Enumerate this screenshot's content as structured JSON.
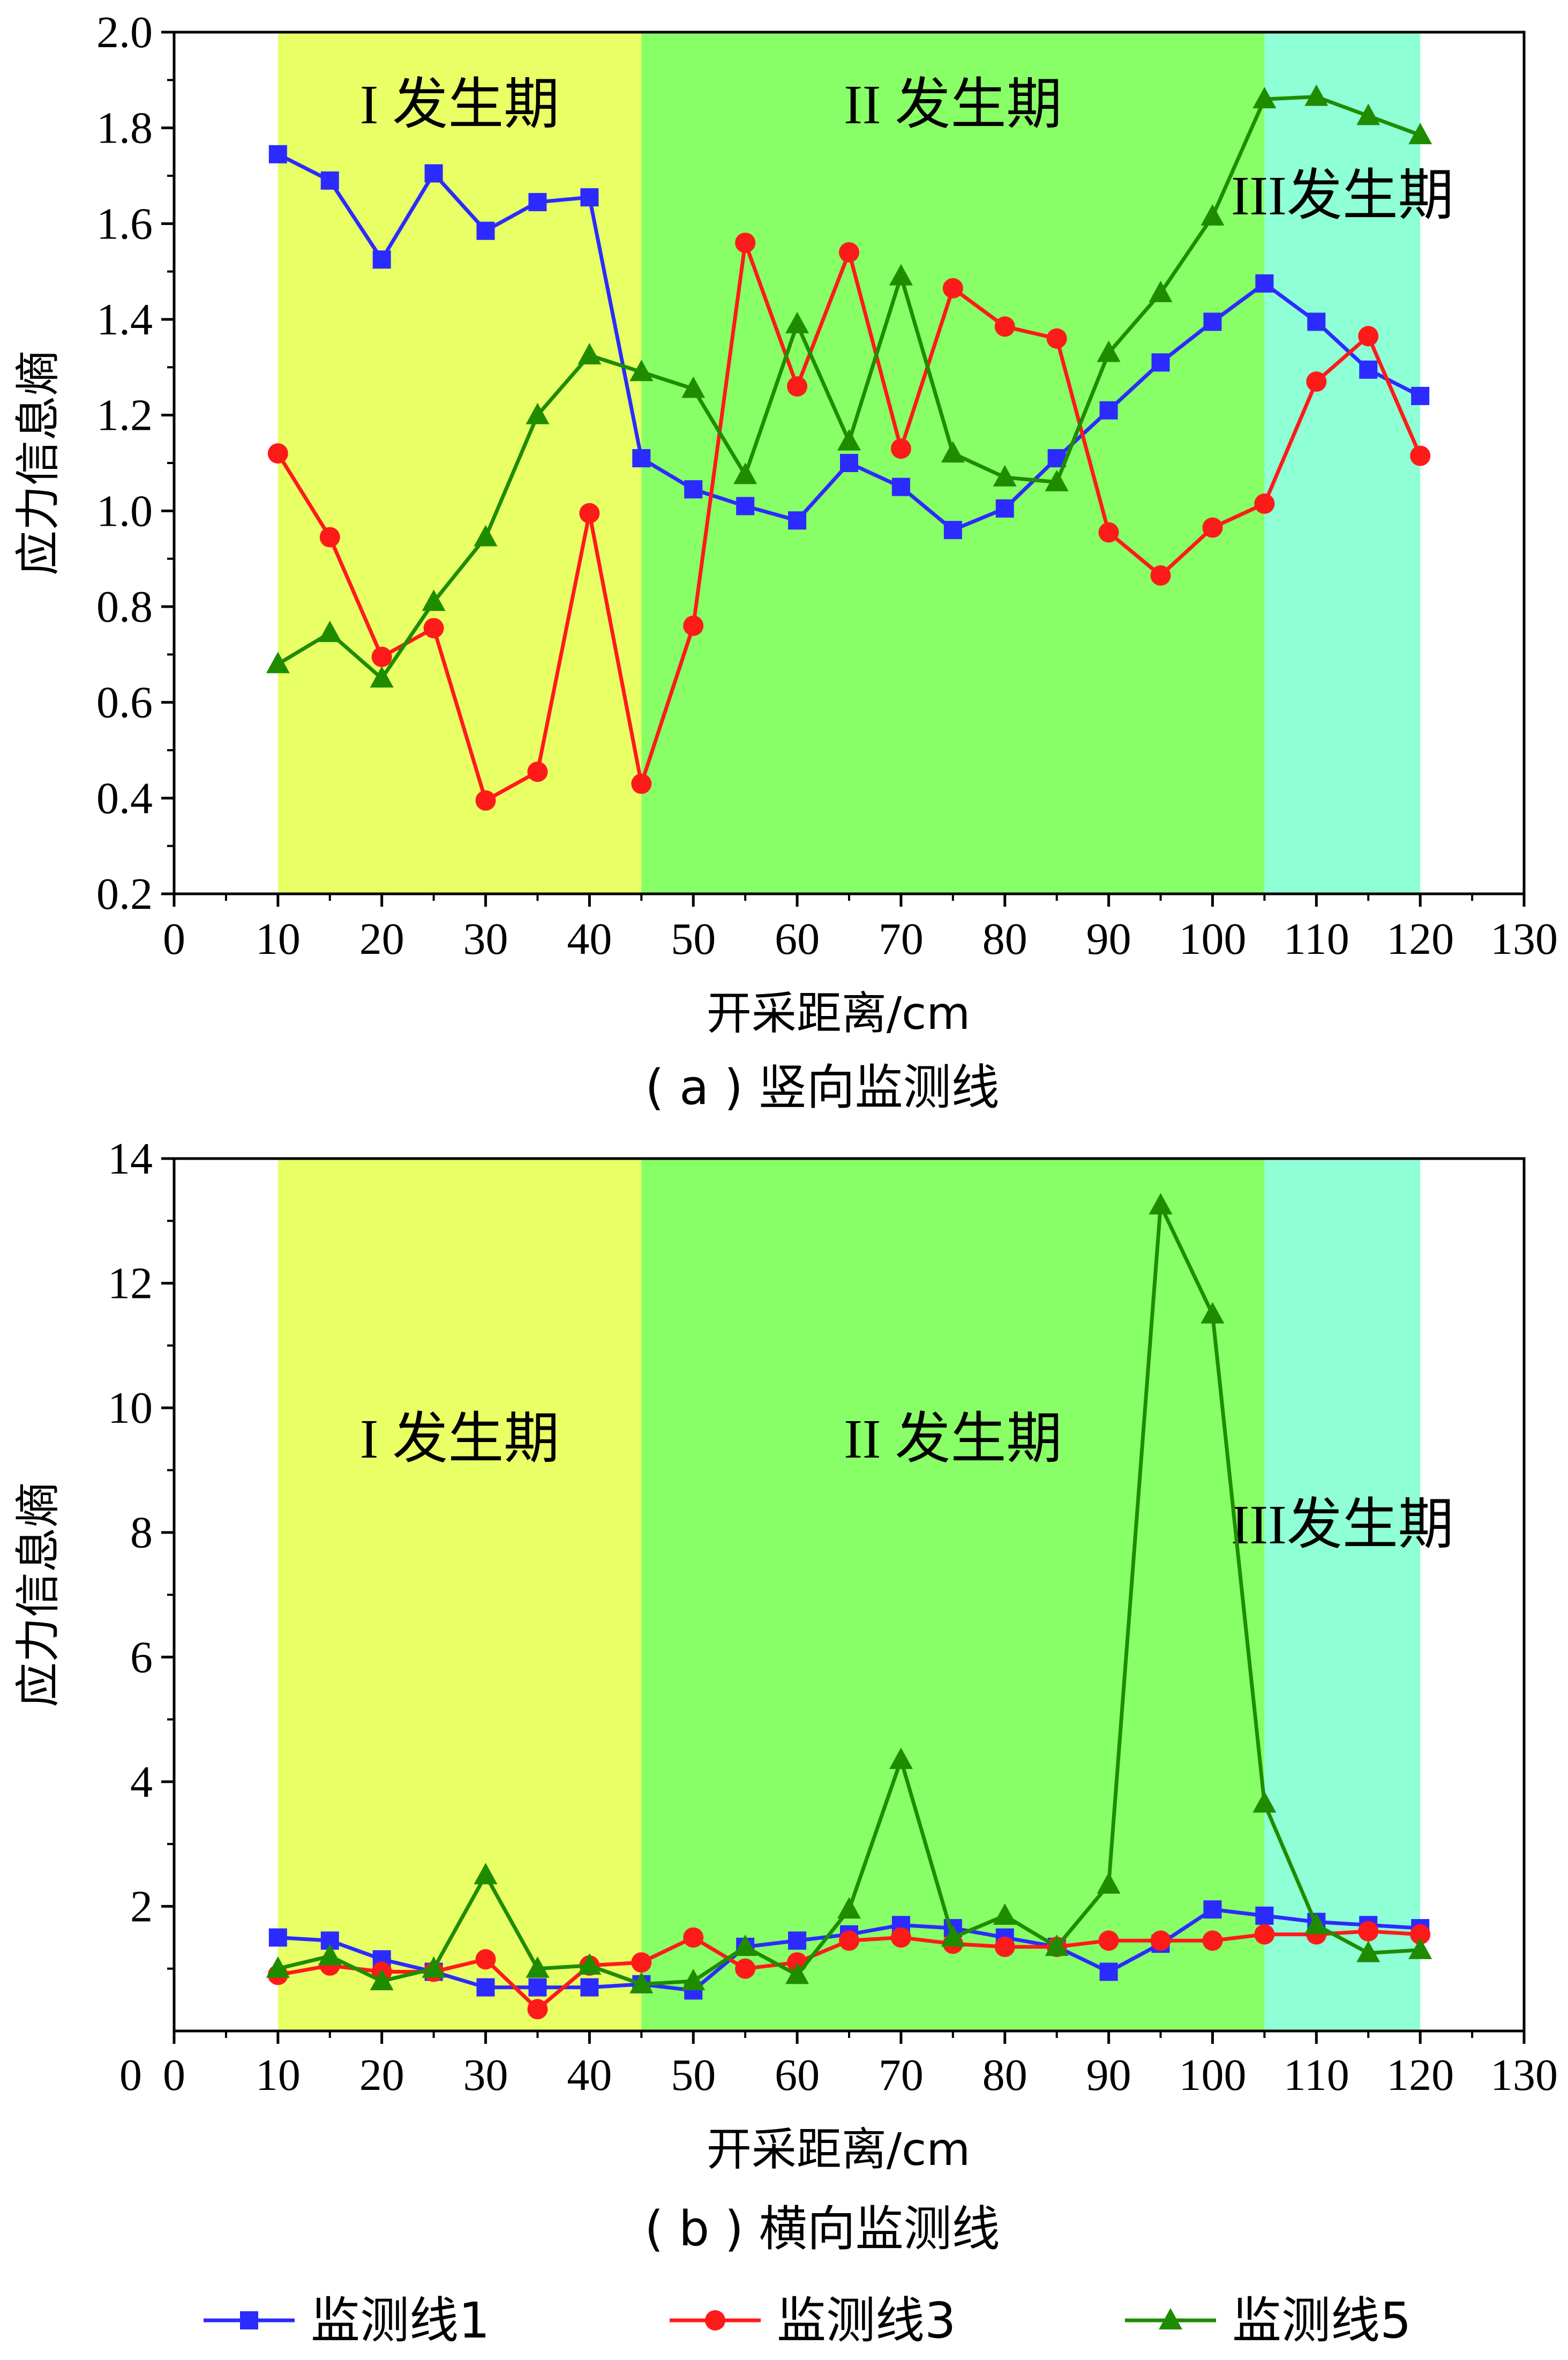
{
  "legend": {
    "items": [
      {
        "label": "监测线1",
        "color": "#2b2bff",
        "marker": "square"
      },
      {
        "label": "监测线3",
        "color": "#ff1a1a",
        "marker": "circle"
      },
      {
        "label": "监测线5",
        "color": "#1f8c00",
        "marker": "triangle"
      }
    ]
  },
  "chart_data": [
    {
      "type": "line",
      "caption": "( a ) 竖向监测线",
      "xlabel": "开采距离/cm",
      "ylabel": "应力信息熵",
      "xlim": [
        0,
        130
      ],
      "ylim": [
        0.2,
        2.0
      ],
      "xticks": [
        "0",
        "10",
        "20",
        "30",
        "40",
        "50",
        "60",
        "70",
        "80",
        "90",
        "100",
        "110",
        "120",
        "130"
      ],
      "yticks": [
        "0.2",
        "0.4",
        "0.6",
        "0.8",
        "1.0",
        "1.2",
        "1.4",
        "1.6",
        "1.8",
        "2.0"
      ],
      "zones": [
        {
          "label": "I 发生期",
          "x0": 10,
          "x1": 45,
          "color": "#e8ff66"
        },
        {
          "label": "II 发生期",
          "x0": 45,
          "x1": 105,
          "color": "#88ff66"
        },
        {
          "label": "III发生期",
          "x0": 105,
          "x1": 120,
          "color": "#8fffd6"
        }
      ],
      "x": [
        10,
        15,
        20,
        25,
        30,
        35,
        40,
        45,
        50,
        55,
        60,
        65,
        70,
        75,
        80,
        85,
        90,
        95,
        100,
        105,
        110,
        115,
        120
      ],
      "series": [
        {
          "name": "监测线1",
          "color": "#2b2bff",
          "marker": "square",
          "values": [
            1.745,
            1.69,
            1.525,
            1.705,
            1.585,
            1.645,
            1.655,
            1.11,
            1.045,
            1.01,
            0.98,
            1.1,
            1.05,
            0.96,
            1.005,
            1.11,
            1.21,
            1.31,
            1.395,
            1.475,
            1.395,
            1.295,
            1.24
          ]
        },
        {
          "name": "监测线3",
          "color": "#ff1a1a",
          "marker": "circle",
          "values": [
            1.12,
            0.945,
            0.695,
            0.755,
            0.395,
            0.455,
            0.995,
            0.43,
            0.76,
            1.56,
            1.26,
            1.54,
            1.13,
            1.465,
            1.385,
            1.36,
            0.955,
            0.865,
            0.965,
            1.015,
            1.27,
            1.365,
            1.115
          ]
        },
        {
          "name": "监测线5",
          "color": "#1f8c00",
          "marker": "triangle",
          "values": [
            0.68,
            0.745,
            0.65,
            0.81,
            0.945,
            1.2,
            1.325,
            1.29,
            1.255,
            1.075,
            1.39,
            1.145,
            1.49,
            1.12,
            1.07,
            1.06,
            1.33,
            1.455,
            1.615,
            1.86,
            1.865,
            1.825,
            1.785
          ]
        }
      ]
    },
    {
      "type": "line",
      "caption": "( b ) 横向监测线",
      "xlabel": "开采距离/cm",
      "ylabel": "应力信息熵",
      "xlim": [
        0,
        130
      ],
      "ylim": [
        0,
        14
      ],
      "xticks": [
        "0",
        "10",
        "20",
        "30",
        "40",
        "50",
        "60",
        "70",
        "80",
        "90",
        "100",
        "110",
        "120",
        "130"
      ],
      "yticks": [
        "2",
        "4",
        "6",
        "8",
        "10",
        "12",
        "14"
      ],
      "zones": [
        {
          "label": "I 发生期",
          "x0": 10,
          "x1": 45,
          "color": "#e8ff66"
        },
        {
          "label": "II 发生期",
          "x0": 45,
          "x1": 105,
          "color": "#88ff66"
        },
        {
          "label": "III发生期",
          "x0": 105,
          "x1": 120,
          "color": "#8fffd6"
        }
      ],
      "x": [
        10,
        15,
        20,
        25,
        30,
        35,
        40,
        45,
        50,
        55,
        60,
        65,
        70,
        75,
        80,
        85,
        90,
        95,
        100,
        105,
        110,
        115,
        120
      ],
      "series": [
        {
          "name": "监测线1",
          "color": "#2b2bff",
          "marker": "square",
          "values": [
            1.5,
            1.45,
            1.15,
            0.95,
            0.7,
            0.7,
            0.7,
            0.75,
            0.65,
            1.35,
            1.45,
            1.55,
            1.7,
            1.65,
            1.5,
            1.35,
            0.95,
            1.4,
            1.95,
            1.85,
            1.75,
            1.7,
            1.65
          ]
        },
        {
          "name": "监测线3",
          "color": "#ff1a1a",
          "marker": "circle",
          "values": [
            0.9,
            1.05,
            0.95,
            0.95,
            1.15,
            0.35,
            1.05,
            1.1,
            1.5,
            1.0,
            1.1,
            1.45,
            1.5,
            1.4,
            1.35,
            1.35,
            1.45,
            1.45,
            1.45,
            1.55,
            1.55,
            1.6,
            1.55
          ]
        },
        {
          "name": "监测线5",
          "color": "#1f8c00",
          "marker": "triangle",
          "values": [
            1.0,
            1.2,
            0.8,
            1.0,
            2.5,
            1.0,
            1.05,
            0.75,
            0.8,
            1.35,
            0.9,
            1.95,
            4.35,
            1.5,
            1.85,
            1.35,
            2.35,
            13.25,
            11.5,
            3.65,
            1.7,
            1.25,
            1.3
          ]
        }
      ]
    }
  ]
}
